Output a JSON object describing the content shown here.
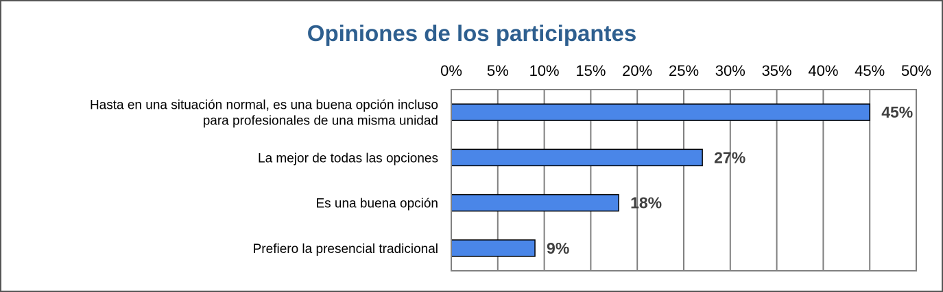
{
  "chart_data": {
    "type": "bar",
    "orientation": "horizontal",
    "title": "Opiniones de los participantes",
    "categories": [
      [
        "Hasta en una situación normal, es una buena opción incluso",
        "para profesionales de una misma unidad"
      ],
      [
        "La mejor de todas las opciones"
      ],
      [
        "Es una buena opción"
      ],
      [
        "Prefiero la presencial tradicional"
      ]
    ],
    "values": [
      45,
      27,
      18,
      9
    ],
    "value_labels": [
      "45%",
      "27%",
      "18%",
      "9%"
    ],
    "x_ticks": [
      "0%",
      "5%",
      "10%",
      "15%",
      "20%",
      "25%",
      "30%",
      "35%",
      "40%",
      "45%",
      "50%"
    ],
    "xlim": [
      0,
      50
    ],
    "x_axis_position": "top",
    "grid": true,
    "bar_color": "#4a86e8",
    "title_color": "#2e5f8f",
    "label_color": "#404040"
  }
}
